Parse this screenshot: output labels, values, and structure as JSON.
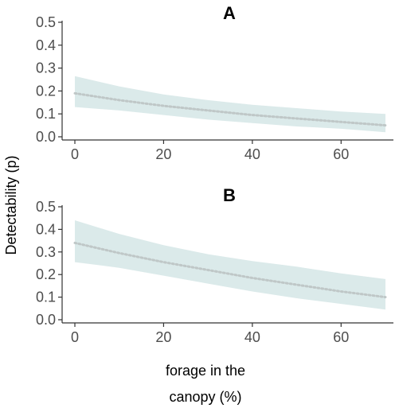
{
  "chart_data": [
    {
      "type": "line",
      "title": "A",
      "xlabel_lines": [
        "forage in the",
        "canopy (%)"
      ],
      "ylabel": "Detectability (p)",
      "xlim": [
        0,
        70
      ],
      "ylim": [
        0,
        0.5
      ],
      "xticks": [
        "0",
        "20",
        "40",
        "60"
      ],
      "xtick_values": [
        0,
        20,
        40,
        60
      ],
      "yticks": [
        "0.0",
        "0.1",
        "0.2",
        "0.3",
        "0.4",
        "0.5"
      ],
      "ytick_values": [
        0,
        0.1,
        0.2,
        0.3,
        0.4,
        0.5
      ],
      "grid": false,
      "ribbon_color": "#dbeaea",
      "line_color": "#bfc7c7",
      "x": [
        0,
        10,
        20,
        30,
        40,
        50,
        60,
        70
      ],
      "y": [
        0.19,
        0.16,
        0.135,
        0.115,
        0.095,
        0.08,
        0.065,
        0.05
      ],
      "y_lower": [
        0.13,
        0.115,
        0.095,
        0.075,
        0.06,
        0.045,
        0.035,
        0.02
      ],
      "y_upper": [
        0.265,
        0.22,
        0.185,
        0.16,
        0.14,
        0.125,
        0.11,
        0.1
      ]
    },
    {
      "type": "line",
      "title": "B",
      "xlim": [
        0,
        70
      ],
      "ylim": [
        0,
        0.5
      ],
      "xticks": [
        "0",
        "20",
        "40",
        "60"
      ],
      "xtick_values": [
        0,
        20,
        40,
        60
      ],
      "yticks": [
        "0.0",
        "0.1",
        "0.2",
        "0.3",
        "0.4",
        "0.5"
      ],
      "ytick_values": [
        0,
        0.1,
        0.2,
        0.3,
        0.4,
        0.5
      ],
      "grid": false,
      "ribbon_color": "#dbeaea",
      "line_color": "#bfc7c7",
      "x": [
        0,
        10,
        20,
        30,
        40,
        50,
        60,
        70
      ],
      "y": [
        0.34,
        0.295,
        0.255,
        0.22,
        0.185,
        0.155,
        0.125,
        0.1
      ],
      "y_lower": [
        0.255,
        0.23,
        0.195,
        0.16,
        0.125,
        0.095,
        0.07,
        0.045
      ],
      "y_upper": [
        0.44,
        0.38,
        0.33,
        0.29,
        0.26,
        0.235,
        0.205,
        0.18
      ]
    }
  ]
}
